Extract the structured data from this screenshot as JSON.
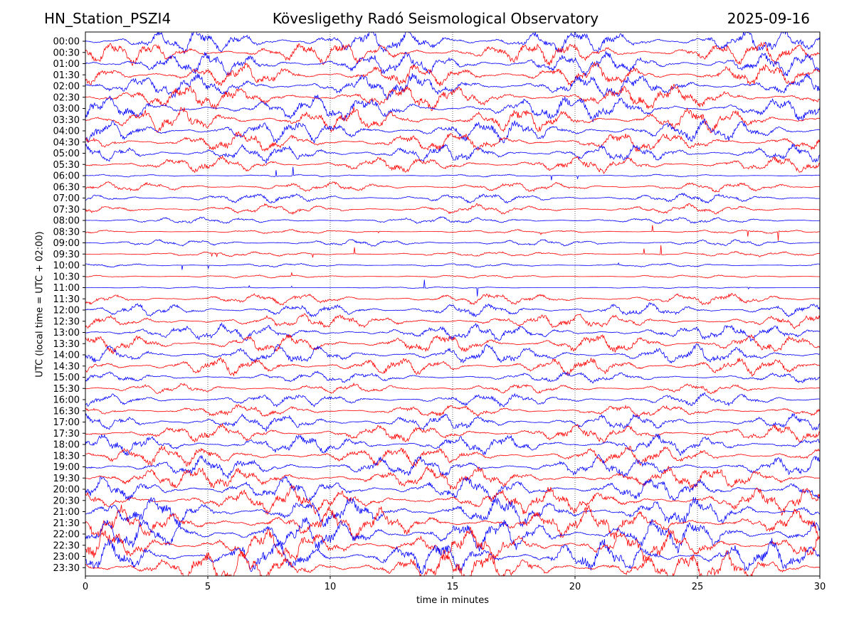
{
  "header": {
    "station": "HN_Station_PSZI4",
    "observatory": "Kövesligethy Radó Seismological Observatory",
    "date": "2025-09-16"
  },
  "chart_data": {
    "type": "line",
    "title": "Kövesligethy Radó Seismological Observatory",
    "xlabel": "time in minutes",
    "ylabel": "UTC (local time = UTC + 02:00)",
    "xlim": [
      0,
      30
    ],
    "x_ticks": [
      "0",
      "5",
      "10",
      "15",
      "20",
      "25",
      "30"
    ],
    "grid": "vertical dotted at every 5 minutes",
    "colors": [
      "#0000ff",
      "#ff0000"
    ],
    "rows": [
      {
        "label": "00:00",
        "amp": 0.75
      },
      {
        "label": "00:30",
        "amp": 0.7
      },
      {
        "label": "01:00",
        "amp": 0.7
      },
      {
        "label": "01:30",
        "amp": 0.7
      },
      {
        "label": "02:00",
        "amp": 0.75
      },
      {
        "label": "02:30",
        "amp": 0.75
      },
      {
        "label": "03:00",
        "amp": 0.8
      },
      {
        "label": "03:30",
        "amp": 0.75
      },
      {
        "label": "04:00",
        "amp": 0.7
      },
      {
        "label": "04:30",
        "amp": 0.65
      },
      {
        "label": "05:00",
        "amp": 0.55
      },
      {
        "label": "05:30",
        "amp": 0.5
      },
      {
        "label": "06:00",
        "amp": 0.08
      },
      {
        "label": "06:30",
        "amp": 0.3
      },
      {
        "label": "07:00",
        "amp": 0.3
      },
      {
        "label": "07:30",
        "amp": 0.3
      },
      {
        "label": "08:00",
        "amp": 0.2
      },
      {
        "label": "08:30",
        "amp": 0.12
      },
      {
        "label": "09:00",
        "amp": 0.2
      },
      {
        "label": "09:30",
        "amp": 0.15
      },
      {
        "label": "10:00",
        "amp": 0.12
      },
      {
        "label": "10:30",
        "amp": 0.1
      },
      {
        "label": "11:00",
        "amp": 0.05
      },
      {
        "label": "11:30",
        "amp": 0.35
      },
      {
        "label": "12:00",
        "amp": 0.4
      },
      {
        "label": "12:30",
        "amp": 0.45
      },
      {
        "label": "13:00",
        "amp": 0.5
      },
      {
        "label": "13:30",
        "amp": 0.6
      },
      {
        "label": "14:00",
        "amp": 0.6
      },
      {
        "label": "14:30",
        "amp": 0.55
      },
      {
        "label": "15:00",
        "amp": 0.35
      },
      {
        "label": "15:30",
        "amp": 0.3
      },
      {
        "label": "16:00",
        "amp": 0.4
      },
      {
        "label": "16:30",
        "amp": 0.4
      },
      {
        "label": "17:00",
        "amp": 0.5
      },
      {
        "label": "17:30",
        "amp": 0.55
      },
      {
        "label": "18:00",
        "amp": 0.6
      },
      {
        "label": "18:30",
        "amp": 0.6
      },
      {
        "label": "19:00",
        "amp": 0.65
      },
      {
        "label": "19:30",
        "amp": 0.7
      },
      {
        "label": "20:00",
        "amp": 0.75
      },
      {
        "label": "20:30",
        "amp": 0.8
      },
      {
        "label": "21:00",
        "amp": 0.9
      },
      {
        "label": "21:30",
        "amp": 0.95
      },
      {
        "label": "22:00",
        "amp": 1.0
      },
      {
        "label": "22:30",
        "amp": 1.0
      },
      {
        "label": "23:00",
        "amp": 1.0
      },
      {
        "label": "23:30",
        "amp": 1.0
      }
    ]
  }
}
